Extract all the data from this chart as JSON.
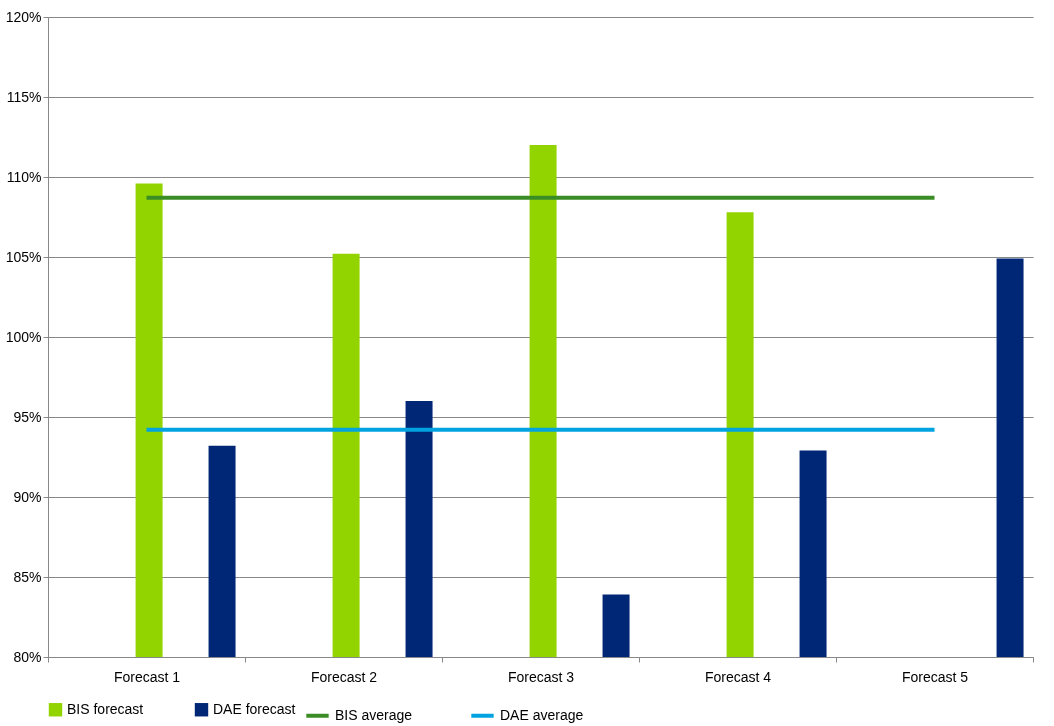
{
  "chart_data": {
    "type": "bar",
    "categories": [
      "Forecast 1",
      "Forecast 2",
      "Forecast 3",
      "Forecast 4",
      "Forecast 5"
    ],
    "series": [
      {
        "name": "BIS forecast",
        "color": "#92d400",
        "values": [
          109.6,
          105.2,
          112.0,
          107.8,
          null
        ]
      },
      {
        "name": "DAE forecast",
        "color": "#002776",
        "values": [
          93.2,
          96.0,
          83.9,
          92.9,
          104.9
        ]
      },
      {
        "name": "BIS average",
        "type": "line",
        "color": "#3a8d24",
        "values": [
          108.7,
          108.7,
          108.7,
          108.7,
          108.7
        ]
      },
      {
        "name": "DAE average",
        "type": "line",
        "color": "#00a3e0",
        "values": [
          94.2,
          94.2,
          94.2,
          94.2,
          94.2
        ]
      }
    ],
    "ylim": [
      80,
      120
    ],
    "yticks": [
      {
        "value": 80,
        "label": "80%"
      },
      {
        "value": 85,
        "label": "85%"
      },
      {
        "value": 90,
        "label": "90%"
      },
      {
        "value": 95,
        "label": "95%"
      },
      {
        "value": 100,
        "label": "100%"
      },
      {
        "value": 105,
        "label": "105%"
      },
      {
        "value": 110,
        "label": "110%"
      },
      {
        "value": 115,
        "label": "115%"
      },
      {
        "value": 120,
        "label": "120%"
      }
    ],
    "grid": "y",
    "legend": "bottom",
    "marker": "none",
    "line_style": "solid"
  }
}
